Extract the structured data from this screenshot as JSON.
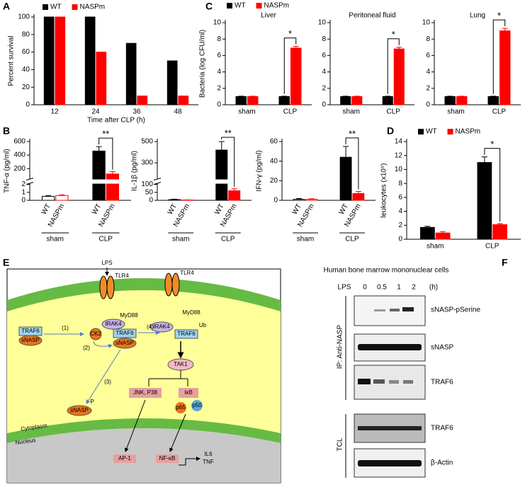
{
  "chart_data": [
    {
      "type": "bar",
      "label": "A",
      "ylabel": "Percent survival",
      "xlabel": "Time after CLP (h)",
      "categories": [
        "12",
        "24",
        "36",
        "48"
      ],
      "series": [
        {
          "name": "WT",
          "color": "#000000",
          "values": [
            100,
            100,
            70,
            50
          ]
        },
        {
          "name": "NASPm",
          "color": "#ff0000",
          "values": [
            100,
            60,
            10,
            10
          ]
        }
      ],
      "ylim": [
        0,
        100
      ],
      "yticks": [
        0,
        20,
        40,
        60,
        80,
        100
      ],
      "legend": "top"
    },
    {
      "type": "bar",
      "label": "C",
      "title": "Liver",
      "ylabel": "Bacteria (log CFU/ml)",
      "categories": [
        "sham",
        "CLP"
      ],
      "series": [
        {
          "name": "WT",
          "color": "#000000",
          "values": [
            1,
            1
          ],
          "errors": [
            0.05,
            0.05
          ]
        },
        {
          "name": "NASPm",
          "color": "#ff0000",
          "values": [
            1,
            6.9
          ],
          "errors": [
            0.05,
            0.2
          ]
        }
      ],
      "ylim": [
        0,
        10
      ],
      "yticks": [
        0,
        2,
        4,
        6,
        8,
        10
      ],
      "legend": "top",
      "annotation": "*"
    },
    {
      "type": "bar",
      "title": "Peritoneal fluid",
      "categories": [
        "sham",
        "CLP"
      ],
      "series": [
        {
          "name": "WT",
          "color": "#000000",
          "values": [
            1,
            1
          ],
          "errors": [
            0.05,
            0.05
          ]
        },
        {
          "name": "NASPm",
          "color": "#ff0000",
          "values": [
            1,
            6.8
          ],
          "errors": [
            0.05,
            0.2
          ]
        }
      ],
      "ylim": [
        0,
        10
      ],
      "yticks": [
        0,
        2,
        4,
        6,
        8,
        10
      ],
      "annotation": "*"
    },
    {
      "type": "bar",
      "title": "Lung",
      "categories": [
        "sham",
        "CLP"
      ],
      "series": [
        {
          "name": "WT",
          "color": "#000000",
          "values": [
            1,
            1
          ],
          "errors": [
            0.05,
            0.05
          ]
        },
        {
          "name": "NASPm",
          "color": "#ff0000",
          "values": [
            1,
            9
          ],
          "errors": [
            0.05,
            0.3
          ]
        }
      ],
      "ylim": [
        0,
        10
      ],
      "yticks": [
        0,
        2,
        4,
        6,
        8,
        10
      ],
      "annotation": "*"
    },
    {
      "type": "bar",
      "label": "B",
      "ylabel": "TNF-α (pg/ml)",
      "categories": [
        "sham",
        "CLP"
      ],
      "series_ticks": true,
      "series": [
        {
          "name": "WT",
          "color": "#000000",
          "colors": [
            "#ffffff",
            "#000000"
          ],
          "values": [
            0.5,
            460
          ],
          "errors": [
            0.1,
            65
          ]
        },
        {
          "name": "NASPm",
          "color": "#ff0000",
          "colors": [
            "#ffffff",
            "#ff0000"
          ],
          "values": [
            0.6,
            120
          ],
          "errors": [
            0.1,
            35
          ]
        }
      ],
      "ylim_segments": [
        [
          0,
          2
        ],
        [
          50,
          600
        ]
      ],
      "yticks": [
        0,
        1,
        2,
        200,
        400,
        600
      ],
      "annotation": "**"
    },
    {
      "type": "bar",
      "ylabel": "IL-1β (pg/ml)",
      "categories": [
        "sham",
        "CLP"
      ],
      "series_ticks": true,
      "series": [
        {
          "name": "WT",
          "color": "#000000",
          "colors": [
            "#ffffff",
            "#000000"
          ],
          "values": [
            5,
            420
          ],
          "errors": [
            2,
            85
          ]
        },
        {
          "name": "NASPm",
          "color": "#ff0000",
          "colors": [
            "#ffffff",
            "#ff0000"
          ],
          "values": [
            2,
            60
          ],
          "errors": [
            1,
            12
          ]
        }
      ],
      "ylim_segments": [
        [
          0,
          100
        ],
        [
          150,
          500
        ]
      ],
      "yticks": [
        0,
        50,
        100,
        300,
        500
      ],
      "annotation": "**"
    },
    {
      "type": "bar",
      "ylabel": "IFN-γ (pg/ml)",
      "categories": [
        "sham",
        "CLP"
      ],
      "series_ticks": true,
      "series": [
        {
          "name": "WT",
          "color": "#000000",
          "colors": [
            "#ffffff",
            "#000000"
          ],
          "values": [
            1,
            44
          ],
          "errors": [
            0.8,
            11
          ]
        },
        {
          "name": "NASPm",
          "color": "#ff0000",
          "colors": [
            "#ffffff",
            "#ff0000"
          ],
          "values": [
            1,
            7
          ],
          "errors": [
            0.5,
            2
          ]
        }
      ],
      "ylim": [
        0,
        60
      ],
      "yticks": [
        0,
        20,
        40,
        60
      ],
      "annotation": "**"
    },
    {
      "type": "bar",
      "label": "D",
      "ylabel": "leukocytes (x10⁵)",
      "categories": [
        "sham",
        "CLP"
      ],
      "series": [
        {
          "name": "WT",
          "color": "#000000",
          "values": [
            1.7,
            11
          ],
          "errors": [
            0.15,
            0.8
          ]
        },
        {
          "name": "NASPm",
          "color": "#ff0000",
          "values": [
            0.9,
            2.1
          ],
          "errors": [
            0.2,
            0.15
          ]
        }
      ],
      "ylim": [
        0,
        14
      ],
      "yticks": [
        0,
        2,
        4,
        6,
        8,
        10,
        12,
        14
      ],
      "legend": "top",
      "annotation": "*"
    }
  ],
  "diagram": {
    "label": "E",
    "texts": [
      "LPS",
      "TLR4",
      "TLR4",
      "MyD88",
      "MyD88",
      "IRAK4",
      "IRAK4",
      "TRAF6",
      "sNASP",
      "CK2",
      "TRAF6",
      "sNASP",
      "TRAF6",
      "Ub",
      "(1)",
      "(2)",
      "(3)",
      "(4)",
      "TAK1",
      "sNASP",
      "P",
      "JNK, P38",
      "IκB",
      "p65",
      "p50",
      "Cytoplasm",
      "Nucleus",
      "AP-1",
      "NF-κB",
      "IL6",
      "TNF"
    ]
  },
  "blot": {
    "label": "F",
    "title": "Human bone marrow mononuclear cells",
    "lane_header": [
      "LPS",
      "0",
      "0.5",
      "1",
      "2",
      "(h)"
    ],
    "rows": [
      "sNASP-pSerine",
      "sNASP",
      "TRAF6",
      "TRAF6",
      "β-Actin"
    ],
    "groups": [
      "IP: Anti-NASP",
      "TCL"
    ]
  }
}
